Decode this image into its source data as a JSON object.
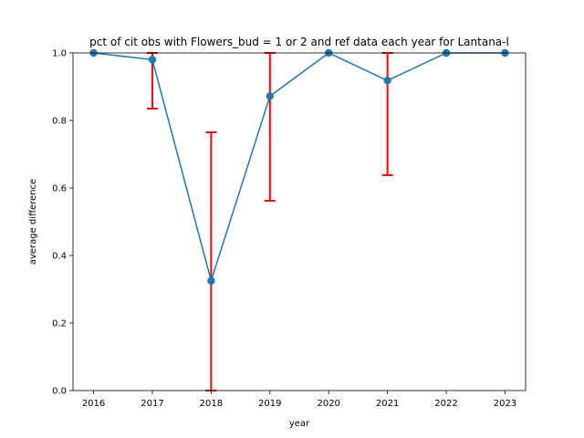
{
  "chart_data": {
    "type": "line",
    "title": "pct of cit obs with Flowers_bud = 1 or 2 and ref data each year for Lantana-l",
    "xlabel": "year",
    "ylabel": "average difference",
    "x": [
      2016,
      2017,
      2018,
      2019,
      2020,
      2021,
      2022,
      2023
    ],
    "series": [
      {
        "values": [
          1.0,
          0.98,
          0.325,
          0.872,
          1.0,
          0.918,
          1.0,
          1.0
        ],
        "error_low": [
          1.0,
          0.835,
          0.0,
          0.562,
          1.0,
          0.638,
          1.0,
          1.0
        ],
        "error_high": [
          1.0,
          1.0,
          0.765,
          1.0,
          1.0,
          1.0,
          1.0,
          1.0
        ],
        "color": "#1f77b4",
        "error_color": "#ff0000"
      }
    ],
    "xlim": [
      2015.65,
      2023.35
    ],
    "ylim": [
      0,
      1.0
    ],
    "xticks": [
      "2016",
      "2017",
      "2018",
      "2019",
      "2020",
      "2021",
      "2022",
      "2023"
    ],
    "yticks": [
      "0.0",
      "0.2",
      "0.4",
      "0.6",
      "0.8",
      "1.0"
    ],
    "grid": false
  }
}
